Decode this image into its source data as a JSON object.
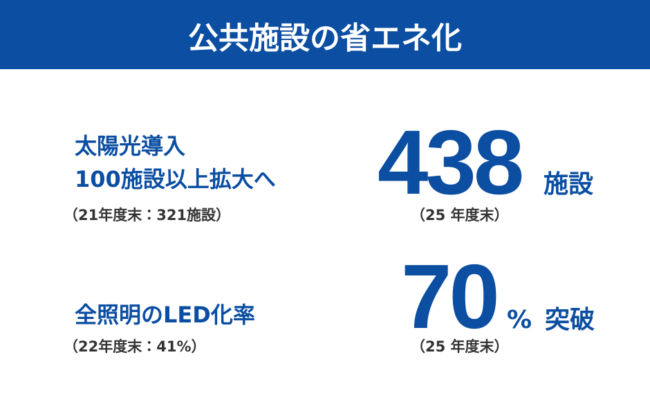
{
  "header": {
    "title": "公共施設の省エネ化"
  },
  "items": [
    {
      "label_lines": [
        "太陽光導入",
        "100施設以上拡大へ"
      ],
      "baseline_note": "（21年度末：321施設）",
      "figure": "438",
      "unit": "施設",
      "figure_note": "（25 年度末）"
    },
    {
      "label_lines": [
        "全照明のLED化率"
      ],
      "baseline_note": "（22年度末：41%）",
      "figure": "70",
      "unit": "%",
      "suffix": "突破",
      "figure_note": "（25 年度末）"
    }
  ]
}
